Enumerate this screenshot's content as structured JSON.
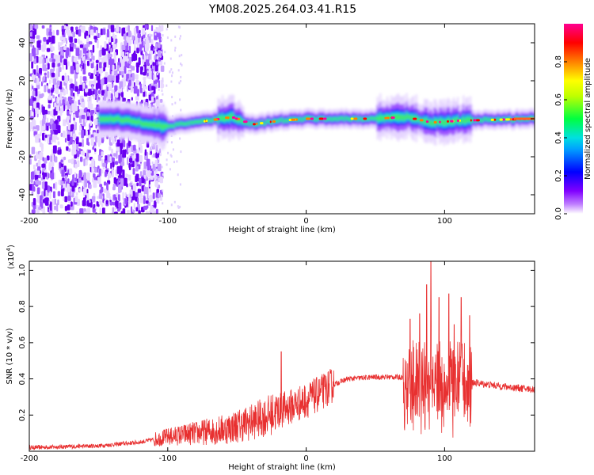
{
  "figure": {
    "title": "YM08.2025.264.03.41.R15"
  },
  "chart_data": [
    {
      "type": "heatmap",
      "title": "YM08.2025.264.03.41.R15",
      "xlabel": "Height of straight line (km)",
      "ylabel": "Frequency (Hz)",
      "xlim": [
        -200,
        165
      ],
      "ylim": [
        -50,
        50
      ],
      "xticks": [
        -200,
        -100,
        0,
        100
      ],
      "yticks": [
        -40,
        -20,
        0,
        20,
        40
      ],
      "colorbar": {
        "label": "Normalized spectral amplitude",
        "range": [
          0,
          1
        ],
        "ticks": [
          "0.0",
          "0.2",
          "0.4",
          "0.6",
          "0.8"
        ],
        "tick_values": [
          0,
          0.2,
          0.4,
          0.6,
          0.8
        ],
        "colormap": [
          "#ffffff",
          "#8000ff",
          "#0000ff",
          "#00e0ff",
          "#00ff40",
          "#c0ff00",
          "#ffff00",
          "#ff8000",
          "#ff0000",
          "#ff00a0"
        ]
      },
      "ridge_center_hz": [
        {
          "x": -140,
          "y": 0
        },
        {
          "x": -120,
          "y": -2
        },
        {
          "x": -105,
          "y": -4
        },
        {
          "x": -80,
          "y": -2
        },
        {
          "x": -55,
          "y": 1
        },
        {
          "x": -40,
          "y": -3
        },
        {
          "x": -20,
          "y": -1
        },
        {
          "x": 0,
          "y": 0
        },
        {
          "x": 50,
          "y": 0
        },
        {
          "x": 70,
          "y": 1
        },
        {
          "x": 90,
          "y": -2
        },
        {
          "x": 110,
          "y": -1
        },
        {
          "x": 165,
          "y": 0
        }
      ],
      "noise_region_km": [
        -200,
        -115
      ],
      "grid": false
    },
    {
      "type": "line",
      "xlabel": "Height of straight line (km)",
      "ylabel": "SNR (10 * v/v)",
      "yscale_label": "(x10",
      "yscale_exp": "4",
      "xlim": [
        -200,
        165
      ],
      "ylim": [
        0,
        1.05
      ],
      "xticks": [
        -200,
        -100,
        0,
        100
      ],
      "yticks": [
        0.2,
        0.4,
        0.6,
        0.8,
        1.0
      ],
      "yticklabels": [
        "0.2",
        "0.4",
        "0.6",
        "0.8",
        "1.0"
      ],
      "line_color": "#e83030",
      "envelope": [
        {
          "x": -200,
          "y": 0.02
        },
        {
          "x": -150,
          "y": 0.03
        },
        {
          "x": -120,
          "y": 0.05
        },
        {
          "x": -100,
          "y": 0.08
        },
        {
          "x": -80,
          "y": 0.1
        },
        {
          "x": -60,
          "y": 0.12
        },
        {
          "x": -40,
          "y": 0.16
        },
        {
          "x": -20,
          "y": 0.22
        },
        {
          "x": 0,
          "y": 0.28
        },
        {
          "x": 10,
          "y": 0.32
        },
        {
          "x": 20,
          "y": 0.37
        },
        {
          "x": 30,
          "y": 0.4
        },
        {
          "x": 50,
          "y": 0.41
        },
        {
          "x": 70,
          "y": 0.41
        },
        {
          "x": 80,
          "y": 0.41
        },
        {
          "x": 100,
          "y": 0.4
        },
        {
          "x": 120,
          "y": 0.38
        },
        {
          "x": 140,
          "y": 0.36
        },
        {
          "x": 165,
          "y": 0.34
        }
      ],
      "peaks": [
        {
          "x": -18,
          "y": 0.55
        },
        {
          "x": 75,
          "y": 0.73
        },
        {
          "x": 82,
          "y": 0.76
        },
        {
          "x": 87,
          "y": 0.92
        },
        {
          "x": 90,
          "y": 1.05
        },
        {
          "x": 96,
          "y": 0.85
        },
        {
          "x": 103,
          "y": 0.87
        },
        {
          "x": 107,
          "y": 0.7
        },
        {
          "x": 112,
          "y": 0.85
        },
        {
          "x": 118,
          "y": 0.75
        }
      ],
      "grid": false
    }
  ]
}
